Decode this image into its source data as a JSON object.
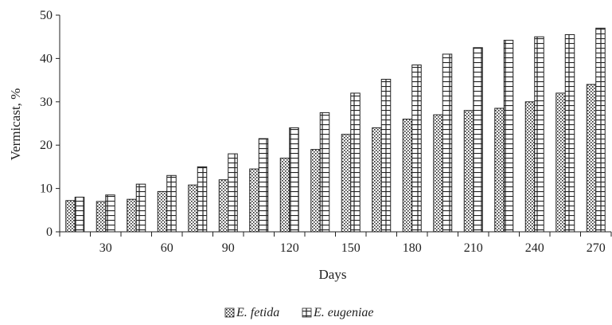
{
  "chart_data": {
    "type": "bar",
    "title": "",
    "xlabel": "Days",
    "ylabel": "Vermicast, %",
    "ylim": [
      0,
      50
    ],
    "yticks": [
      0,
      10,
      20,
      30,
      40,
      50
    ],
    "categories": [
      "15",
      "30",
      "45",
      "60",
      "75",
      "90",
      "105",
      "120",
      "135",
      "150",
      "165",
      "180",
      "195",
      "210",
      "225",
      "240",
      "255",
      "270"
    ],
    "category_labels_shown": [
      "",
      "30",
      "",
      "60",
      "",
      "90",
      "",
      "120",
      "",
      "150",
      "",
      "180",
      "",
      "210",
      "",
      "240",
      "",
      "270"
    ],
    "series": [
      {
        "name": "E. fetida",
        "pattern": "dotted-hatch",
        "values": [
          7.2,
          7.0,
          7.5,
          9.3,
          10.8,
          12.0,
          14.5,
          17.0,
          19.0,
          22.5,
          24.0,
          26.0,
          27.0,
          28.0,
          28.5,
          30.0,
          32.0,
          34.0
        ]
      },
      {
        "name": "E. eugeniae",
        "pattern": "grid-hatch",
        "values": [
          8.0,
          8.5,
          11.0,
          13.0,
          15.0,
          18.0,
          21.5,
          24.0,
          27.5,
          32.0,
          35.2,
          38.5,
          41.0,
          42.5,
          44.2,
          45.0,
          45.5,
          47.0
        ]
      }
    ],
    "legend": {
      "position": "bottom-center"
    },
    "grid": false
  }
}
